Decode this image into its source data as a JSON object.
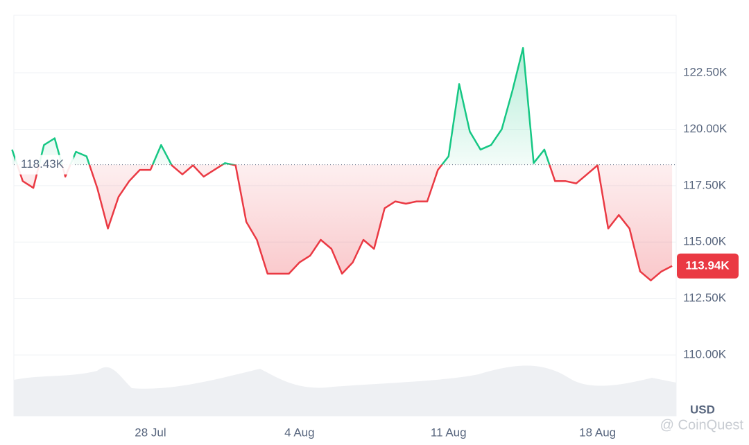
{
  "chart_data": {
    "type": "line",
    "categories": [
      null,
      null,
      null,
      null,
      null,
      null,
      null,
      null,
      null,
      null,
      null,
      null,
      null,
      "28 Jul",
      null,
      null,
      null,
      null,
      null,
      null,
      null,
      null,
      null,
      null,
      null,
      null,
      null,
      "4 Aug",
      null,
      null,
      null,
      null,
      null,
      null,
      null,
      null,
      null,
      null,
      null,
      null,
      null,
      "11 Aug",
      null,
      null,
      null,
      null,
      null,
      null,
      null,
      null,
      null,
      null,
      null,
      null,
      null,
      "18 Aug",
      null,
      null,
      null,
      null,
      null,
      null,
      null
    ],
    "values": [
      119.1,
      117.7,
      117.4,
      119.3,
      119.6,
      117.9,
      119.0,
      118.8,
      117.4,
      115.6,
      117.0,
      117.7,
      118.2,
      118.2,
      119.3,
      118.4,
      118.0,
      118.4,
      117.9,
      118.2,
      118.5,
      118.4,
      115.9,
      115.1,
      113.6,
      113.6,
      113.6,
      114.1,
      114.4,
      115.1,
      114.7,
      113.6,
      114.1,
      115.1,
      114.7,
      116.5,
      116.8,
      116.7,
      116.8,
      116.8,
      118.2,
      118.8,
      122.0,
      119.9,
      119.1,
      119.3,
      120.0,
      121.7,
      123.6,
      118.5,
      119.1,
      117.7,
      117.7,
      117.6,
      118.0,
      118.4,
      115.6,
      116.2,
      115.6,
      113.7,
      113.3,
      113.7,
      113.94
    ],
    "up_color": "#16c784",
    "down_color": "#ea3943",
    "baseline": {
      "value": 118.43,
      "label": "118.43K"
    },
    "last_price": {
      "value": 113.94,
      "label": "113.94K"
    },
    "ylim": [
      107.3,
      125.05
    ],
    "yticks": [
      {
        "value": 110,
        "label": "110.00K"
      },
      {
        "value": 112.5,
        "label": "112.50K"
      },
      {
        "value": 115,
        "label": "115.00K"
      },
      {
        "value": 117.5,
        "label": "117.50K"
      },
      {
        "value": 120,
        "label": "120.00K"
      },
      {
        "value": 122.5,
        "label": "122.50K"
      }
    ],
    "grid": true,
    "currency": "USD",
    "watermark": "@ CoinQuest"
  }
}
